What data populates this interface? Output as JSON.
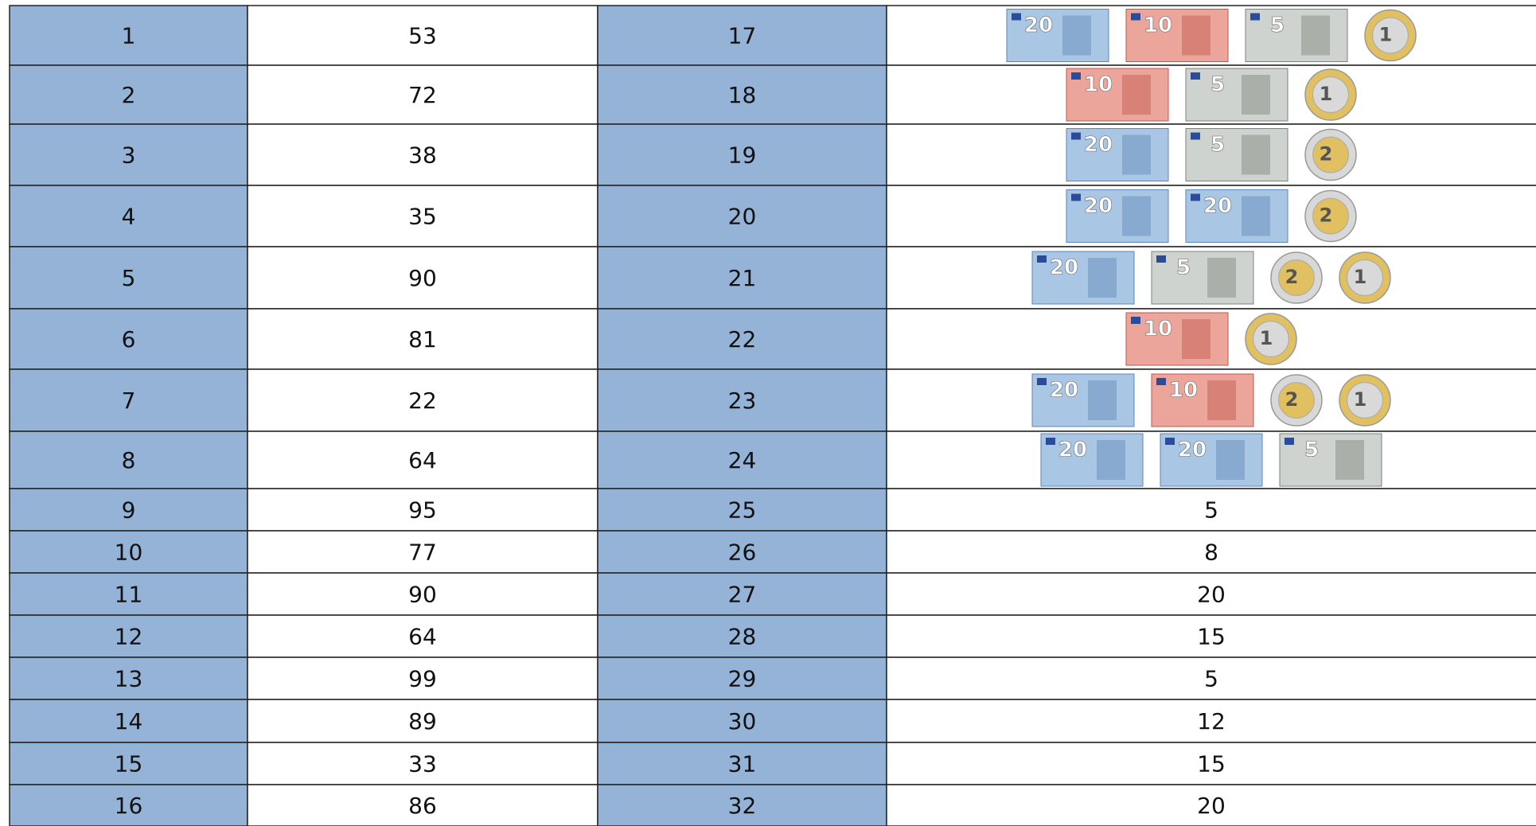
{
  "table": {
    "rows": [
      {
        "a": "1",
        "b": "53",
        "c": "17",
        "d": [
          {
            "kind": "note",
            "label": "20"
          },
          {
            "kind": "note",
            "label": "10"
          },
          {
            "kind": "note",
            "label": "5"
          },
          {
            "kind": "coin",
            "label": "1"
          }
        ]
      },
      {
        "a": "2",
        "b": "72",
        "c": "18",
        "d": [
          {
            "kind": "note",
            "label": "10"
          },
          {
            "kind": "note",
            "label": "5"
          },
          {
            "kind": "coin",
            "label": "1"
          }
        ]
      },
      {
        "a": "3",
        "b": "38",
        "c": "19",
        "d": [
          {
            "kind": "note",
            "label": "20"
          },
          {
            "kind": "note",
            "label": "5"
          },
          {
            "kind": "coin",
            "label": "2"
          }
        ]
      },
      {
        "a": "4",
        "b": "35",
        "c": "20",
        "d": [
          {
            "kind": "note",
            "label": "20"
          },
          {
            "kind": "note",
            "label": "20"
          },
          {
            "kind": "coin",
            "label": "2"
          }
        ]
      },
      {
        "a": "5",
        "b": "90",
        "c": "21",
        "d": [
          {
            "kind": "note",
            "label": "20"
          },
          {
            "kind": "note",
            "label": "5"
          },
          {
            "kind": "coin",
            "label": "2"
          },
          {
            "kind": "coin",
            "label": "1"
          }
        ]
      },
      {
        "a": "6",
        "b": "81",
        "c": "22",
        "d": [
          {
            "kind": "note",
            "label": "10"
          },
          {
            "kind": "coin",
            "label": "1"
          }
        ]
      },
      {
        "a": "7",
        "b": "22",
        "c": "23",
        "d": [
          {
            "kind": "note",
            "label": "20"
          },
          {
            "kind": "note",
            "label": "10"
          },
          {
            "kind": "coin",
            "label": "2"
          },
          {
            "kind": "coin",
            "label": "1"
          }
        ]
      },
      {
        "a": "8",
        "b": "64",
        "c": "24",
        "d": [
          {
            "kind": "note",
            "label": "20"
          },
          {
            "kind": "note",
            "label": "20"
          },
          {
            "kind": "note",
            "label": "5"
          }
        ]
      },
      {
        "a": "9",
        "b": "95",
        "c": "25",
        "d": "5"
      },
      {
        "a": "10",
        "b": "77",
        "c": "26",
        "d": "8"
      },
      {
        "a": "11",
        "b": "90",
        "c": "27",
        "d": "20"
      },
      {
        "a": "12",
        "b": "64",
        "c": "28",
        "d": "15"
      },
      {
        "a": "13",
        "b": "99",
        "c": "29",
        "d": "5"
      },
      {
        "a": "14",
        "b": "89",
        "c": "30",
        "d": "12"
      },
      {
        "a": "15",
        "b": "33",
        "c": "31",
        "d": "15"
      },
      {
        "a": "16",
        "b": "86",
        "c": "32",
        "d": "20"
      }
    ]
  }
}
